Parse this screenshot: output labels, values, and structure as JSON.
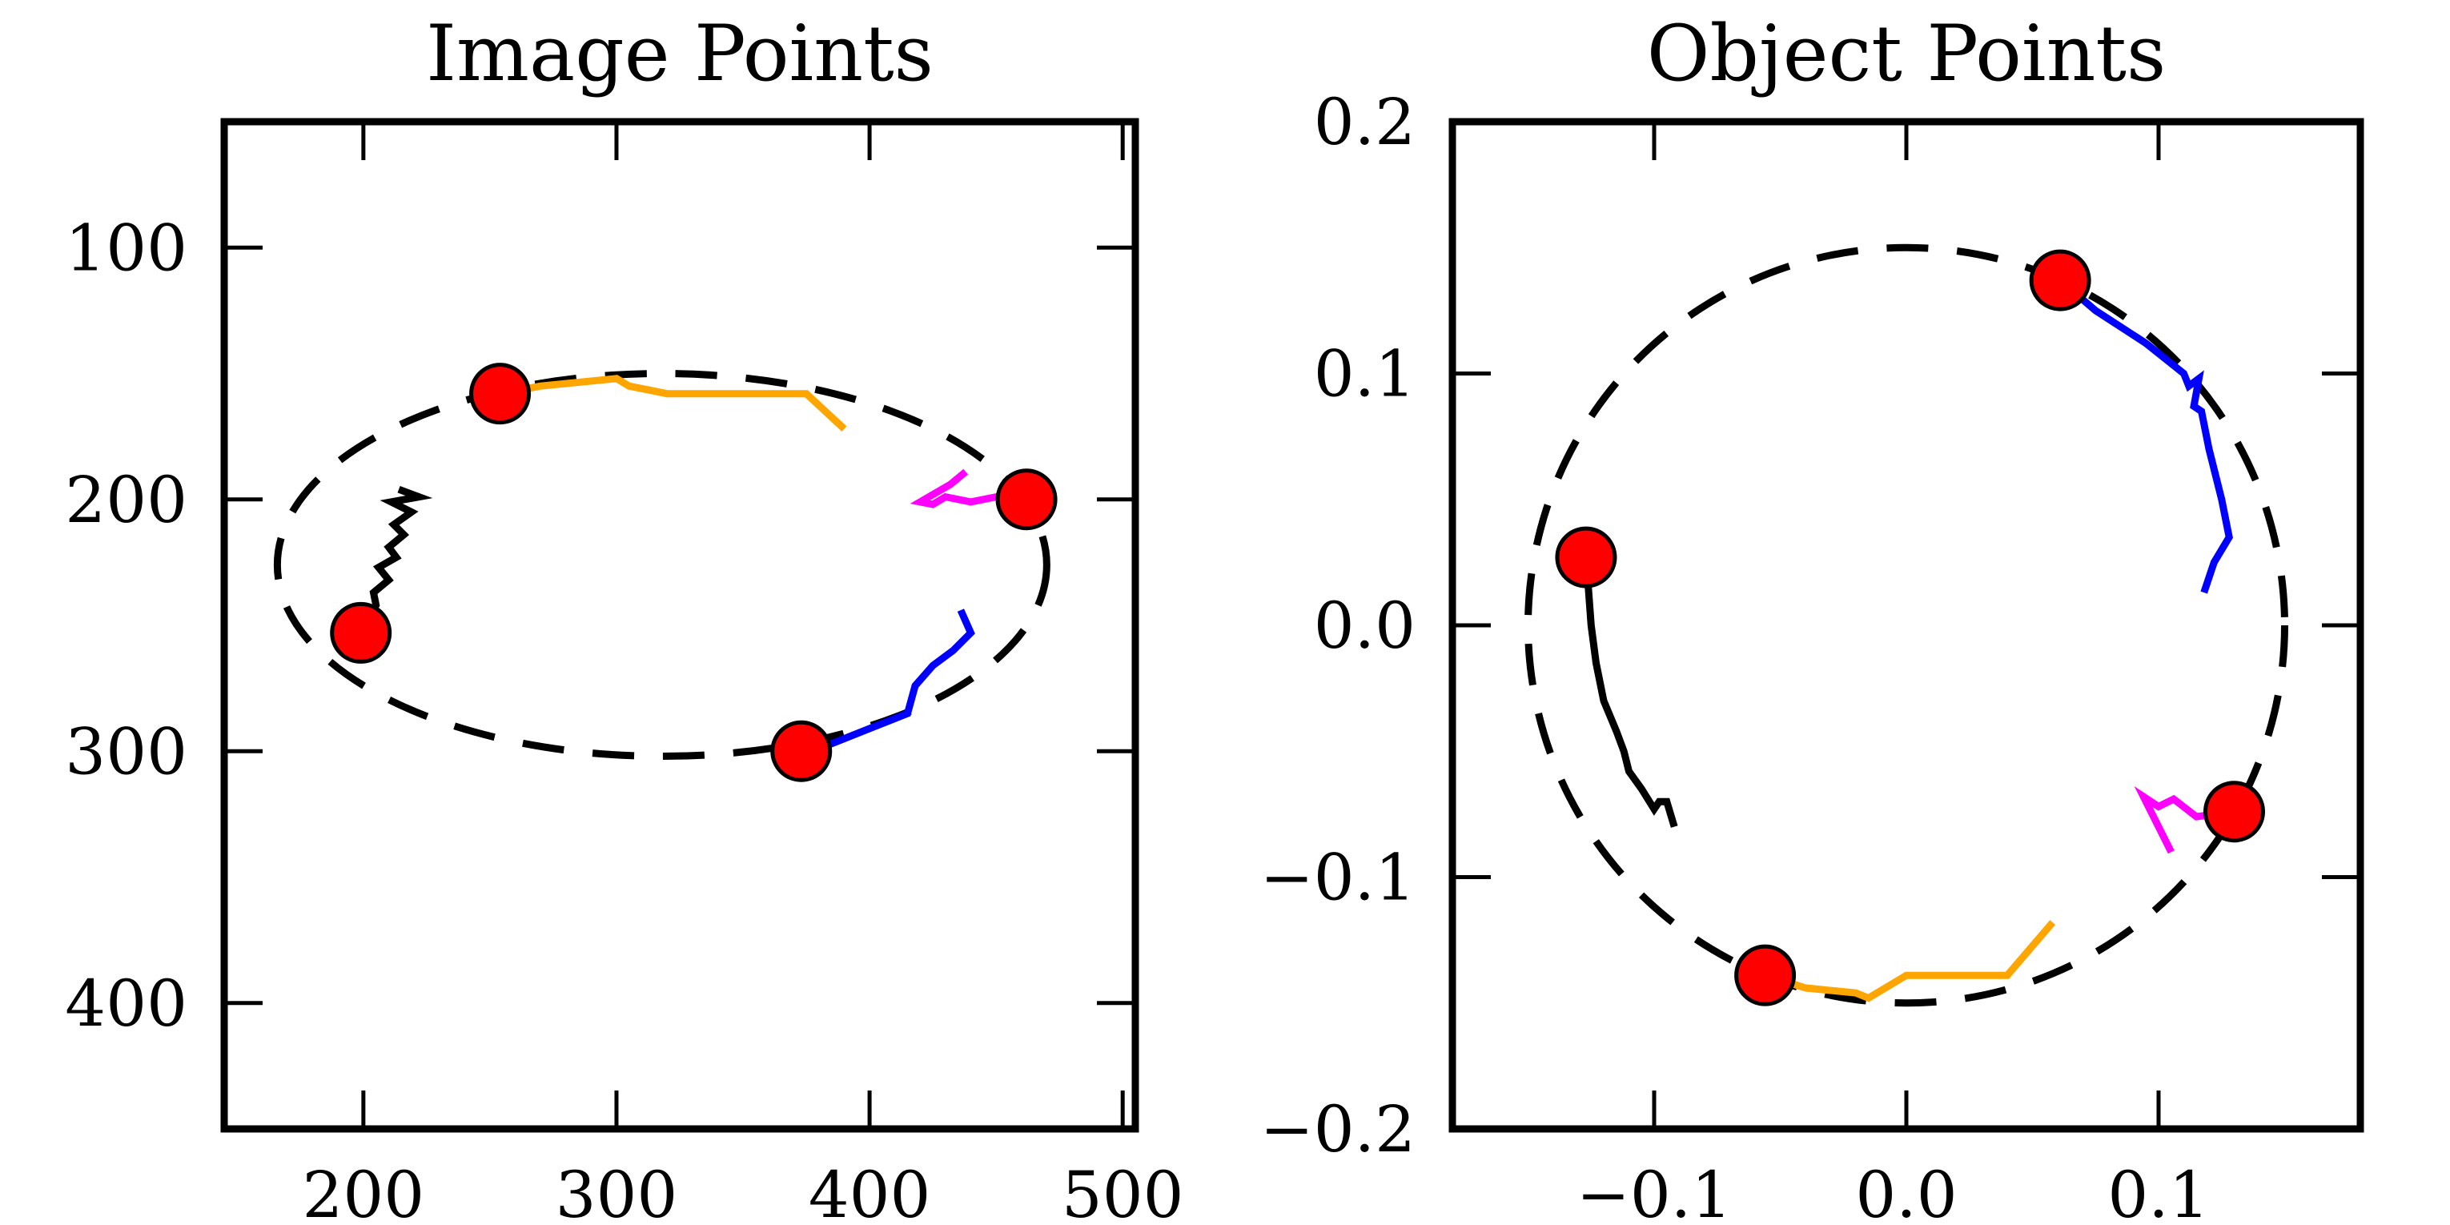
{
  "chart_data": [
    {
      "type": "scatter",
      "title": "Image Points",
      "xlabel": "",
      "ylabel": "",
      "xlim": [
        145,
        505
      ],
      "ylim": [
        450,
        50
      ],
      "y_inverted": true,
      "xticks": [
        200,
        300,
        400,
        500
      ],
      "yticks": [
        100,
        200,
        300,
        400
      ],
      "xtick_labels": [
        "200",
        "300",
        "400",
        "500"
      ],
      "ytick_labels": [
        "100",
        "200",
        "300",
        "400"
      ],
      "grid": false,
      "ellipse": {
        "cx": 318,
        "cy": 226,
        "rx": 152,
        "ry": 76,
        "style": "dashed",
        "color": "#000000"
      },
      "points": [
        {
          "x": 254,
          "y": 158
        },
        {
          "x": 462,
          "y": 200
        },
        {
          "x": 373,
          "y": 300
        },
        {
          "x": 199,
          "y": 253
        }
      ],
      "point_color": "#ff0000",
      "series": [
        {
          "color": "#ffa500",
          "x": [
            254,
            270,
            300,
            305,
            320,
            350,
            375,
            390
          ],
          "y": [
            158,
            155,
            152,
            155,
            158,
            158,
            158,
            172
          ]
        },
        {
          "color": "#ff00ff",
          "x": [
            462,
            450,
            440,
            430,
            425,
            420,
            432,
            438
          ],
          "y": [
            200,
            199,
            201,
            199,
            202,
            201,
            194,
            189
          ]
        },
        {
          "color": "#0000ff",
          "x": [
            373,
            385,
            400,
            410,
            415,
            418,
            425,
            433,
            440,
            436
          ],
          "y": [
            300,
            297,
            291,
            287,
            285,
            274,
            266,
            260,
            253,
            244
          ]
        },
        {
          "color": "#000000",
          "x": [
            199,
            205,
            204,
            210,
            206,
            213,
            210,
            216,
            212,
            219,
            211,
            222,
            214
          ],
          "y": [
            253,
            242,
            237,
            232,
            227,
            223,
            219,
            214,
            210,
            205,
            201,
            199,
            196
          ]
        }
      ]
    },
    {
      "type": "scatter",
      "title": "Object Points",
      "xlabel": "",
      "ylabel": "",
      "xlim": [
        -0.18,
        0.18
      ],
      "ylim": [
        -0.2,
        0.2
      ],
      "xticks": [
        -0.1,
        0.0,
        0.1
      ],
      "yticks": [
        -0.2,
        -0.1,
        0.0,
        0.1,
        0.2
      ],
      "xtick_labels": [
        "−0.1",
        "0.0",
        "0.1"
      ],
      "ytick_labels": [
        "−0.2",
        "−0.1",
        "0.0",
        "0.1",
        "0.2"
      ],
      "grid": false,
      "ellipse": {
        "cx": 0,
        "cy": 0,
        "rx": 0.15,
        "ry": 0.15,
        "style": "dashed",
        "color": "#000000"
      },
      "points": [
        {
          "x": 0.061,
          "y": 0.137
        },
        {
          "x": 0.13,
          "y": -0.074
        },
        {
          "x": -0.056,
          "y": -0.139
        },
        {
          "x": -0.127,
          "y": 0.027
        }
      ],
      "point_color": "#ff0000",
      "series": [
        {
          "color": "#0000ff",
          "x": [
            0.061,
            0.075,
            0.095,
            0.11,
            0.112,
            0.116,
            0.114,
            0.117,
            0.12,
            0.125,
            0.128,
            0.122,
            0.118
          ],
          "y": [
            0.137,
            0.125,
            0.112,
            0.1,
            0.095,
            0.098,
            0.087,
            0.085,
            0.07,
            0.05,
            0.035,
            0.025,
            0.013
          ]
        },
        {
          "color": "#ff00ff",
          "x": [
            0.13,
            0.115,
            0.106,
            0.1,
            0.094,
            0.1,
            0.105
          ],
          "y": [
            -0.074,
            -0.076,
            -0.069,
            -0.072,
            -0.068,
            -0.08,
            -0.09
          ]
        },
        {
          "color": "#ffa500",
          "x": [
            -0.056,
            -0.04,
            -0.02,
            -0.015,
            0.0,
            0.04,
            0.058
          ],
          "y": [
            -0.139,
            -0.144,
            -0.146,
            -0.148,
            -0.139,
            -0.139,
            -0.118
          ]
        },
        {
          "color": "#000000",
          "x": [
            -0.127,
            -0.125,
            -0.123,
            -0.12,
            -0.115,
            -0.112,
            -0.11,
            -0.105,
            -0.1,
            -0.098,
            -0.095,
            -0.092
          ],
          "y": [
            0.027,
            0.0,
            -0.015,
            -0.03,
            -0.042,
            -0.05,
            -0.058,
            -0.065,
            -0.073,
            -0.07,
            -0.07,
            -0.08
          ]
        }
      ]
    }
  ]
}
